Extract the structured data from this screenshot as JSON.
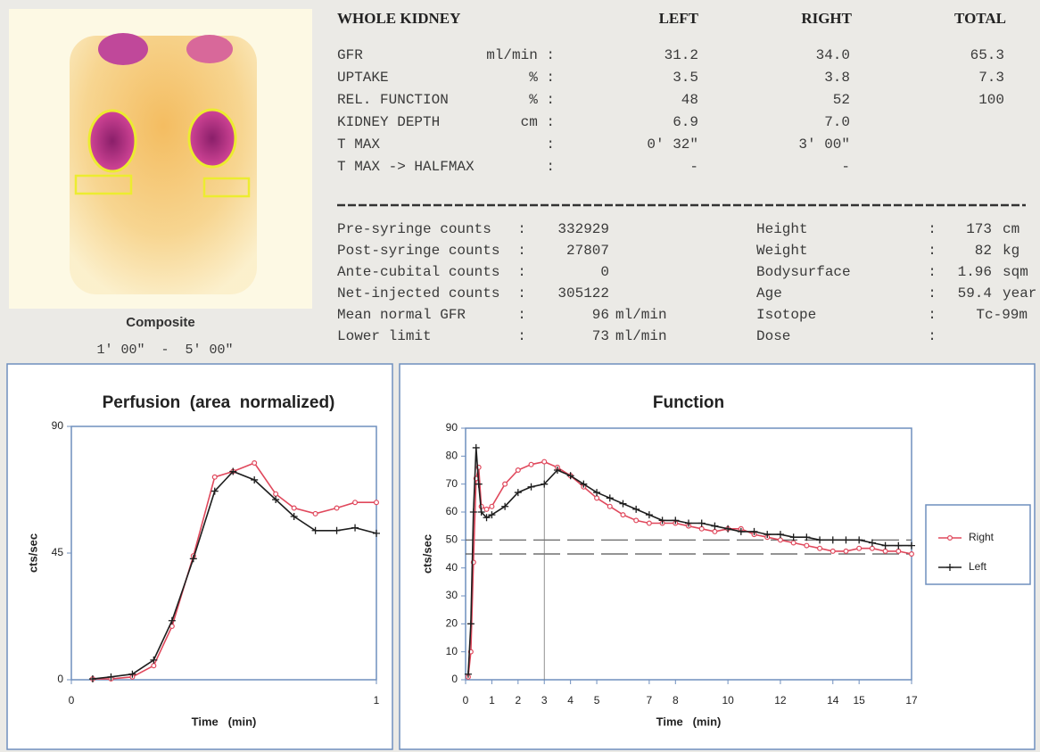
{
  "image": {
    "caption": "Composite",
    "time_range": "1' 00\"  -  5' 00\""
  },
  "table": {
    "header": [
      "WHOLE KIDNEY",
      "LEFT",
      "RIGHT",
      "TOTAL"
    ],
    "rows": [
      [
        "GFR",
        "ml/min :",
        "31.2",
        "34.0",
        "65.3"
      ],
      [
        "UPTAKE",
        "% :",
        "3.5",
        "3.8",
        "7.3"
      ],
      [
        "REL. FUNCTION",
        "% :",
        "48",
        "52",
        "100"
      ],
      [
        "KIDNEY DEPTH",
        "cm :",
        "6.9",
        "7.0"
      ],
      [
        "T MAX",
        ":",
        "0' 32\"",
        "3' 00\""
      ],
      [
        "T MAX -> HALFMAX",
        ":",
        "-",
        "-"
      ]
    ]
  },
  "counts": [
    [
      "Pre-syringe counts",
      ":",
      "332929"
    ],
    [
      "Post-syringe counts",
      ":",
      "27807"
    ],
    [
      "Ante-cubital counts",
      ":",
      "0"
    ],
    [
      "Net-injected counts",
      ":",
      "305122"
    ],
    [
      "Mean normal GFR",
      ":",
      "96",
      "ml/min"
    ],
    [
      "Lower limit",
      ":",
      "73",
      "ml/min"
    ]
  ],
  "patient": [
    [
      "Height",
      ":",
      "173",
      "cm"
    ],
    [
      "Weight",
      ":",
      "82",
      "kg"
    ],
    [
      "Bodysurface",
      ":",
      "1.96",
      "sqm"
    ],
    [
      "Age",
      ":",
      "59.4",
      "year"
    ],
    [
      "Isotope",
      ":",
      "Tc-99m"
    ],
    [
      "Dose",
      ":"
    ]
  ],
  "chart_data": [
    {
      "type": "line",
      "title": "Perfusion  (area  normalized)",
      "xlabel": "Time   (min)",
      "ylabel": "cts/sec",
      "x": [
        0.07,
        0.13,
        0.2,
        0.27,
        0.33,
        0.4,
        0.47,
        0.53,
        0.6,
        0.67,
        0.73,
        0.8,
        0.87,
        0.93,
        1
      ],
      "series": [
        {
          "name": "Right",
          "color": "#e0485c",
          "marker": "circle",
          "values": [
            0.3,
            0.3,
            1,
            5,
            19,
            44,
            72,
            74,
            77,
            66,
            61,
            59,
            61,
            63,
            63
          ]
        },
        {
          "name": "Left",
          "color": "#1e1e1e",
          "marker": "plus",
          "values": [
            0.3,
            1,
            2,
            7,
            21,
            43,
            67,
            74,
            71,
            64,
            58,
            53,
            53,
            54,
            52
          ]
        }
      ],
      "xlim": [
        0,
        1
      ],
      "ylim": [
        0,
        90
      ],
      "xticks": [
        0,
        1
      ],
      "yticks": [
        0,
        45,
        90
      ],
      "legend": false
    },
    {
      "type": "line",
      "title": "Function",
      "xlabel": "Time   (min)",
      "ylabel": "cts/sec",
      "x": [
        0.1,
        0.2,
        0.3,
        0.4,
        0.5,
        0.6,
        0.8,
        1,
        1.5,
        2,
        2.5,
        3,
        3.5,
        4,
        4.5,
        5,
        5.5,
        6,
        6.5,
        7,
        7.5,
        8,
        8.5,
        9,
        9.5,
        10,
        10.5,
        11,
        11.5,
        12,
        12.5,
        13,
        13.5,
        14,
        14.5,
        15,
        15.5,
        16,
        16.5,
        17
      ],
      "series": [
        {
          "name": "Right",
          "color": "#e0485c",
          "marker": "circle",
          "values": [
            1,
            10,
            42,
            72,
            76,
            62,
            61,
            62,
            70,
            75,
            77,
            78,
            76,
            73,
            69,
            65,
            62,
            59,
            57,
            56,
            56,
            56,
            55,
            54,
            53,
            54,
            54,
            52,
            51,
            50,
            49,
            48,
            47,
            46,
            46,
            47,
            47,
            46,
            46,
            45
          ]
        },
        {
          "name": "Left",
          "color": "#1e1e1e",
          "marker": "plus",
          "values": [
            2,
            20,
            60,
            83,
            70,
            60,
            58,
            59,
            62,
            67,
            69,
            70,
            75,
            73,
            70,
            67,
            65,
            63,
            61,
            59,
            57,
            57,
            56,
            56,
            55,
            54,
            53,
            53,
            52,
            52,
            51,
            51,
            50,
            50,
            50,
            50,
            49,
            48,
            48,
            48
          ]
        }
      ],
      "xlim": [
        0,
        17
      ],
      "ylim": [
        0,
        90
      ],
      "xticks": [
        0,
        1,
        2,
        3,
        4,
        5,
        7,
        8,
        10,
        12,
        14,
        15,
        17
      ],
      "yticks": [
        0,
        10,
        20,
        30,
        40,
        50,
        60,
        70,
        80,
        90
      ],
      "hlines": [
        50,
        45
      ],
      "vline": 3,
      "legend": "right"
    }
  ]
}
